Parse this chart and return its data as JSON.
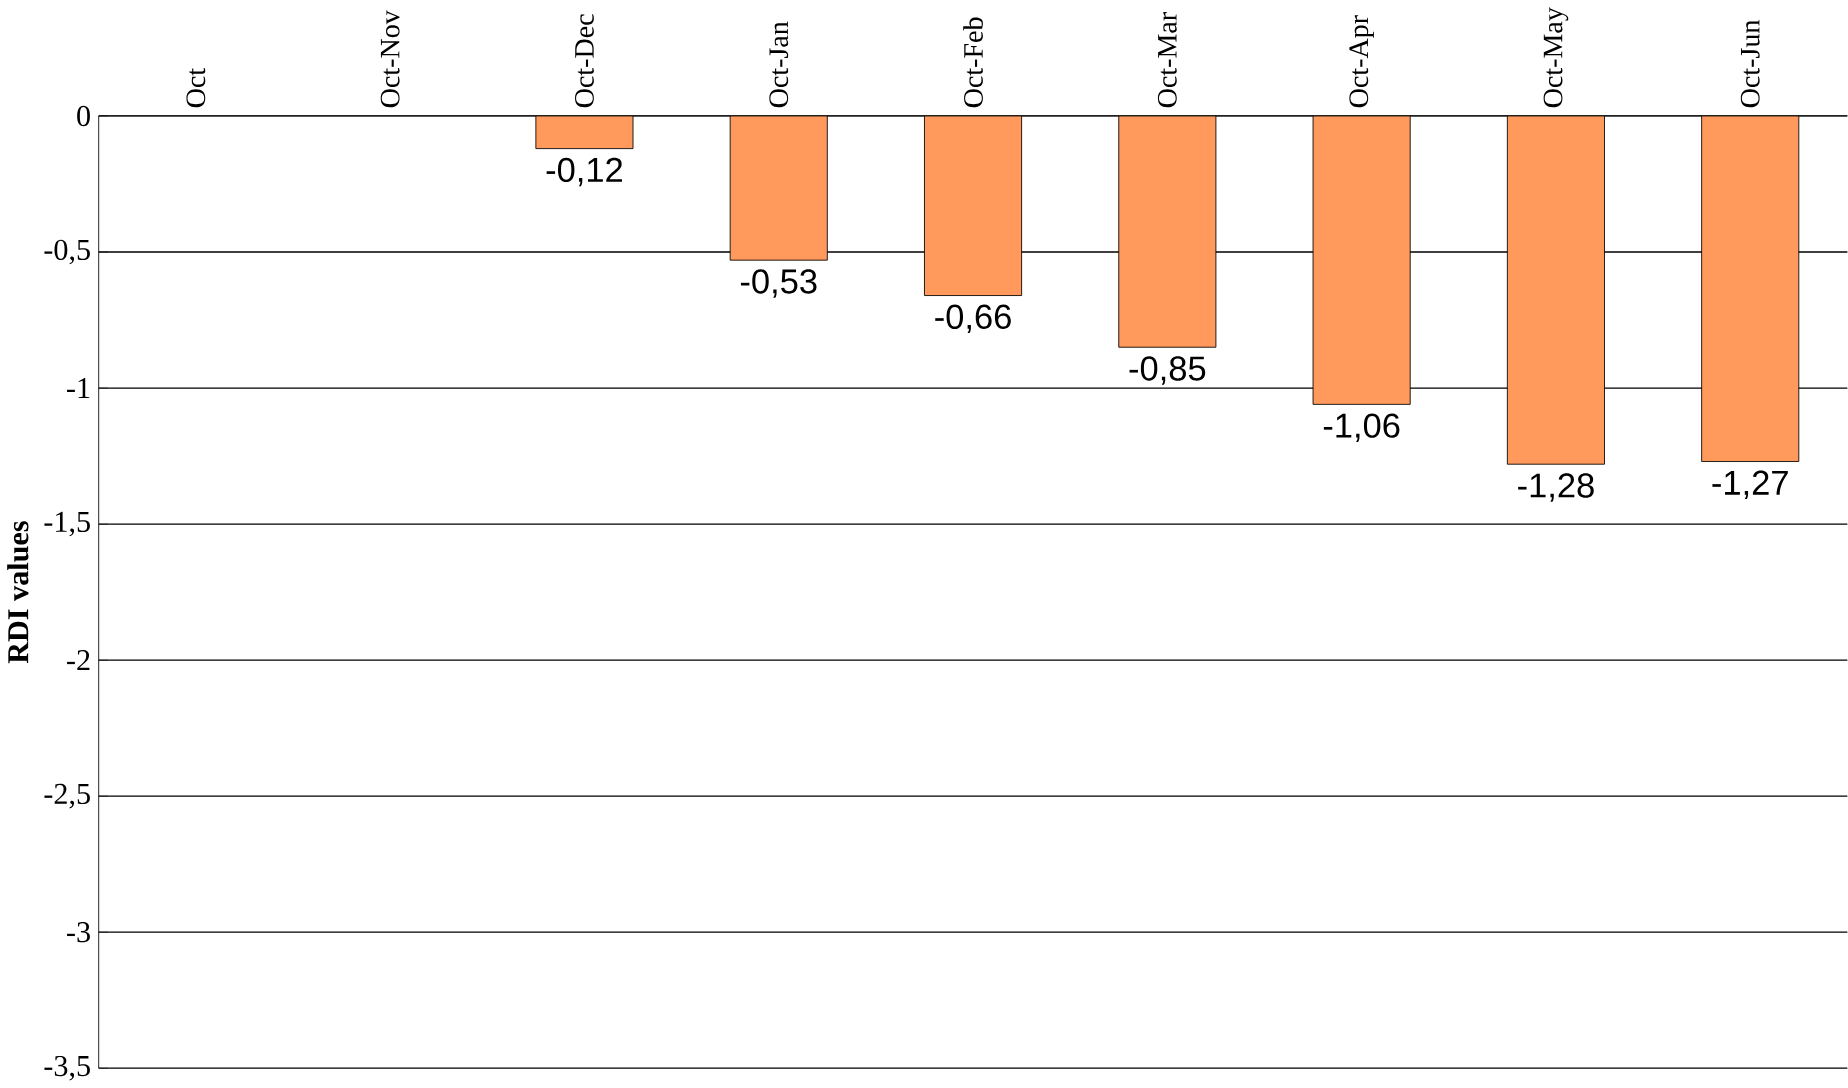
{
  "chart_data": {
    "type": "bar",
    "ylabel": "RDI values",
    "categories": [
      "Oct",
      "Oct-Nov",
      "Oct-Dec",
      "Oct-Jan",
      "Oct-Feb",
      "Oct-Mar",
      "Oct-Apr",
      "Oct-May",
      "Oct-Jun"
    ],
    "values": [
      null,
      null,
      -0.12,
      -0.53,
      -0.66,
      -0.85,
      -1.06,
      -1.28,
      -1.27
    ],
    "value_labels": [
      null,
      null,
      "-0,12",
      "-0,53",
      "-0,66",
      "-0,85",
      "-1,06",
      "-1,28",
      "-1,27"
    ],
    "color": "#ff9a5c",
    "ylim": [
      -3.5,
      0
    ],
    "yticks": [
      {
        "value": -3.5,
        "label": "-3,5"
      },
      {
        "value": -3,
        "label": "-3"
      },
      {
        "value": -2.5,
        "label": "-2,5"
      },
      {
        "value": -2,
        "label": "-2"
      },
      {
        "value": -1.5,
        "label": "-1,5"
      },
      {
        "value": -1,
        "label": "-1"
      },
      {
        "value": -0.5,
        "label": "-0,5"
      },
      {
        "value": 0,
        "label": "0"
      }
    ],
    "grid": "y"
  }
}
